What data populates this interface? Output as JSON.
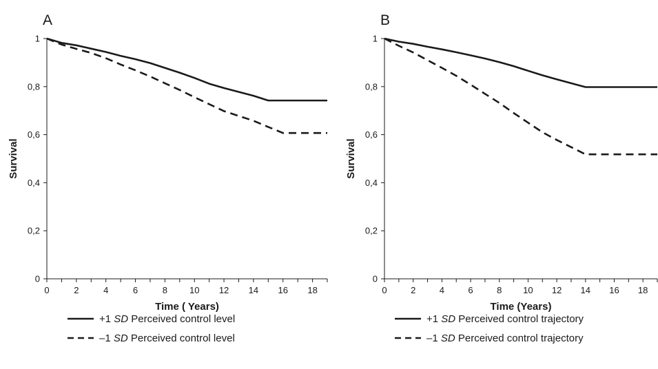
{
  "chart_data": [
    {
      "type": "line",
      "panel_label": "A",
      "xlabel": "Time ( Years)",
      "ylabel": "Survival",
      "xlim": [
        0,
        19
      ],
      "ylim": [
        0,
        1
      ],
      "x_ticks": [
        0,
        2,
        4,
        6,
        8,
        10,
        12,
        14,
        16,
        18
      ],
      "y_ticks": [
        0,
        0.2,
        0.4,
        0.6,
        0.8,
        1
      ],
      "y_tick_labels": [
        "0",
        "0,2",
        "0,4",
        "0,6",
        "0,8",
        "1"
      ],
      "grid": false,
      "legend_position": "bottom",
      "series": [
        {
          "name": "Perceived control level",
          "legend_prefix": "+1 ",
          "legend_sd": "SD",
          "legend_suffix": " Perceived control level",
          "style": "solid",
          "x": [
            0,
            1,
            2,
            3,
            4,
            5,
            6,
            7,
            8,
            9,
            10,
            11,
            12,
            13,
            14,
            15,
            16,
            17,
            18,
            19
          ],
          "y": [
            1.0,
            0.982,
            0.972,
            0.958,
            0.944,
            0.928,
            0.914,
            0.898,
            0.878,
            0.858,
            0.836,
            0.812,
            0.794,
            0.778,
            0.762,
            0.742,
            0.742,
            0.742,
            0.742,
            0.742
          ]
        },
        {
          "name": "Perceived control level",
          "legend_prefix": "–1 ",
          "legend_sd": "SD",
          "legend_suffix": " Perceived control level",
          "style": "dashed",
          "x": [
            0,
            1,
            2,
            3,
            4,
            5,
            6,
            7,
            8,
            9,
            10,
            11,
            12,
            13,
            14,
            15,
            16,
            17,
            18,
            19
          ],
          "y": [
            1.0,
            0.975,
            0.957,
            0.94,
            0.918,
            0.892,
            0.868,
            0.842,
            0.814,
            0.786,
            0.756,
            0.727,
            0.698,
            0.678,
            0.658,
            0.632,
            0.607,
            0.607,
            0.607,
            0.607
          ]
        }
      ]
    },
    {
      "type": "line",
      "panel_label": "B",
      "xlabel": "Time (Years)",
      "ylabel": "Survival",
      "xlim": [
        0,
        19
      ],
      "ylim": [
        0,
        1
      ],
      "x_ticks": [
        0,
        2,
        4,
        6,
        8,
        10,
        12,
        14,
        16,
        18
      ],
      "y_ticks": [
        0,
        0.2,
        0.4,
        0.6,
        0.8,
        1
      ],
      "y_tick_labels": [
        "0",
        "0,2",
        "0,4",
        "0,6",
        "0,8",
        "1"
      ],
      "grid": false,
      "legend_position": "bottom",
      "series": [
        {
          "name": "Perceived control trajectory",
          "legend_prefix": "+1 ",
          "legend_sd": "SD",
          "legend_suffix": " Perceived control trajectory",
          "style": "solid",
          "x": [
            0,
            1,
            2,
            3,
            4,
            5,
            6,
            7,
            8,
            9,
            10,
            11,
            12,
            13,
            14,
            15,
            16,
            17,
            18,
            19
          ],
          "y": [
            1.0,
            0.987,
            0.978,
            0.966,
            0.955,
            0.943,
            0.93,
            0.917,
            0.902,
            0.885,
            0.866,
            0.847,
            0.83,
            0.814,
            0.798,
            0.798,
            0.798,
            0.798,
            0.798,
            0.798
          ]
        },
        {
          "name": "Perceived control trajectory",
          "legend_prefix": "–1 ",
          "legend_sd": "SD",
          "legend_suffix": " Perceived control trajectory",
          "style": "dashed",
          "x": [
            0,
            1,
            2,
            3,
            4,
            5,
            6,
            7,
            8,
            9,
            10,
            11,
            12,
            13,
            14,
            15,
            16,
            17,
            18,
            19
          ],
          "y": [
            1.0,
            0.97,
            0.942,
            0.91,
            0.878,
            0.845,
            0.808,
            0.77,
            0.732,
            0.69,
            0.65,
            0.61,
            0.578,
            0.548,
            0.518,
            0.518,
            0.518,
            0.518,
            0.518,
            0.518
          ]
        }
      ]
    }
  ]
}
